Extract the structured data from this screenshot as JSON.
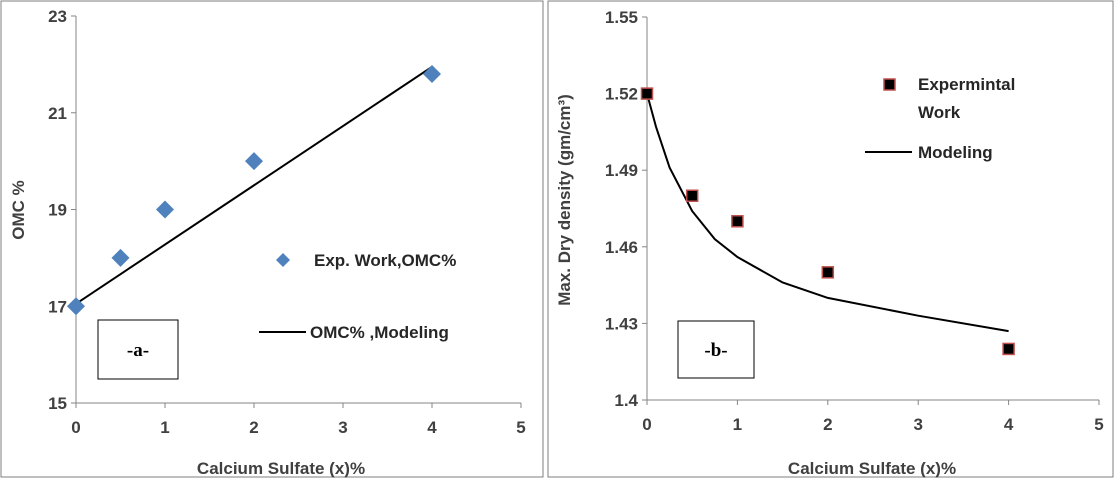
{
  "chart_data": [
    {
      "type": "scatter",
      "panel_tag": "-a-",
      "xlabel": "Calcium Sulfate (x)%",
      "ylabel": "OMC %",
      "xlim": [
        0,
        5
      ],
      "ylim": [
        15,
        23
      ],
      "xticks": [
        "0",
        "1",
        "2",
        "3",
        "4",
        "5"
      ],
      "yticks": [
        "15",
        "17",
        "19",
        "21",
        "23"
      ],
      "series": [
        {
          "name": "Exp. Work,OMC%",
          "kind": "scatter",
          "marker": "diamond",
          "color": "#4F81BD",
          "x": [
            0,
            0.5,
            1,
            2,
            4
          ],
          "y": [
            17,
            18,
            19,
            20,
            21.8
          ]
        },
        {
          "name": "OMC% ,Modeling",
          "kind": "line",
          "color": "#000000",
          "x": [
            0,
            4
          ],
          "y": [
            17.05,
            21.95
          ]
        }
      ]
    },
    {
      "type": "scatter",
      "panel_tag": "-b-",
      "xlabel": "Calcium Sulfate (x)%",
      "ylabel": "Max. Dry density (gm/cm³)",
      "xlim": [
        0,
        5
      ],
      "ylim": [
        1.4,
        1.55
      ],
      "xticks": [
        "0",
        "1",
        "2",
        "3",
        "4",
        "5"
      ],
      "yticks": [
        "1.4",
        "1.43",
        "1.46",
        "1.49",
        "1.52",
        "1.55"
      ],
      "series": [
        {
          "name": "Expermintal Work",
          "kind": "scatter",
          "marker": "square",
          "color": "#000000",
          "edge_color": "#C0504D",
          "x": [
            0,
            0.5,
            1,
            2,
            4
          ],
          "y": [
            1.52,
            1.48,
            1.47,
            1.45,
            1.42
          ]
        },
        {
          "name": "Modeling",
          "kind": "line",
          "color": "#000000",
          "x": [
            0,
            0.1,
            0.25,
            0.5,
            0.75,
            1,
            1.5,
            2,
            3,
            4
          ],
          "y": [
            1.52,
            1.507,
            1.491,
            1.474,
            1.463,
            1.456,
            1.446,
            1.44,
            1.433,
            1.427
          ]
        }
      ]
    }
  ]
}
